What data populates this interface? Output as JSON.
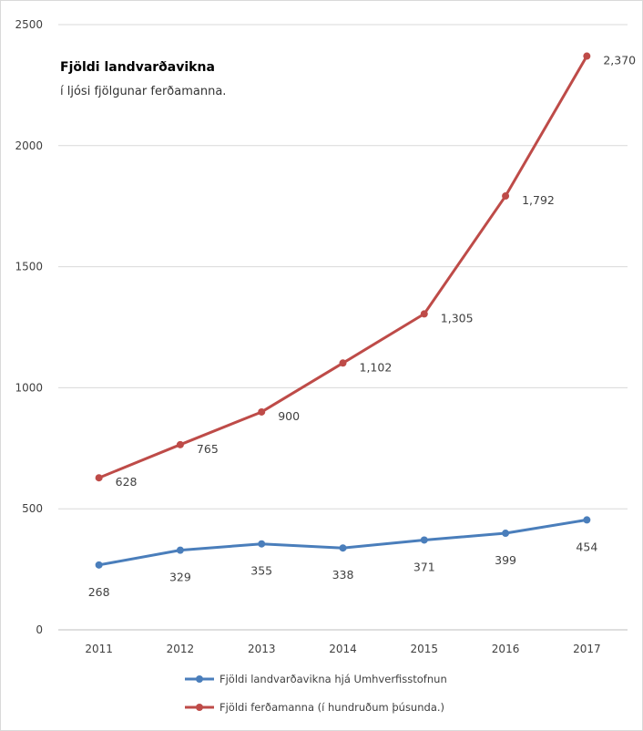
{
  "chart_data": {
    "type": "line",
    "title": "Fjöldi landvarðavikna",
    "subtitle": "í ljósi fjölgunar ferðamanna.",
    "xlabel": "",
    "ylabel": "",
    "categories": [
      "2011",
      "2012",
      "2013",
      "2014",
      "2015",
      "2016",
      "2017"
    ],
    "ylim": [
      0,
      2500
    ],
    "yticks": [
      "0",
      "500",
      "1000",
      "1500",
      "2000",
      "2500"
    ],
    "grid": true,
    "legend_position": "bottom",
    "series": [
      {
        "name": "Fjöldi landvarðavikna hjá Umhverfisstofnun",
        "color": "#4a7ebb",
        "values": [
          268,
          329,
          355,
          338,
          371,
          399,
          454
        ],
        "labels": [
          "268",
          "329",
          "355",
          "338",
          "371",
          "399",
          "454"
        ]
      },
      {
        "name": "Fjöldi ferðamanna (í hundruðum þúsunda.)",
        "color": "#be4b48",
        "values": [
          628,
          765,
          900,
          1102,
          1305,
          1792,
          2370
        ],
        "labels": [
          "628",
          "765",
          "900",
          "1,102",
          "1,305",
          "1,792",
          "2,370"
        ]
      }
    ]
  }
}
